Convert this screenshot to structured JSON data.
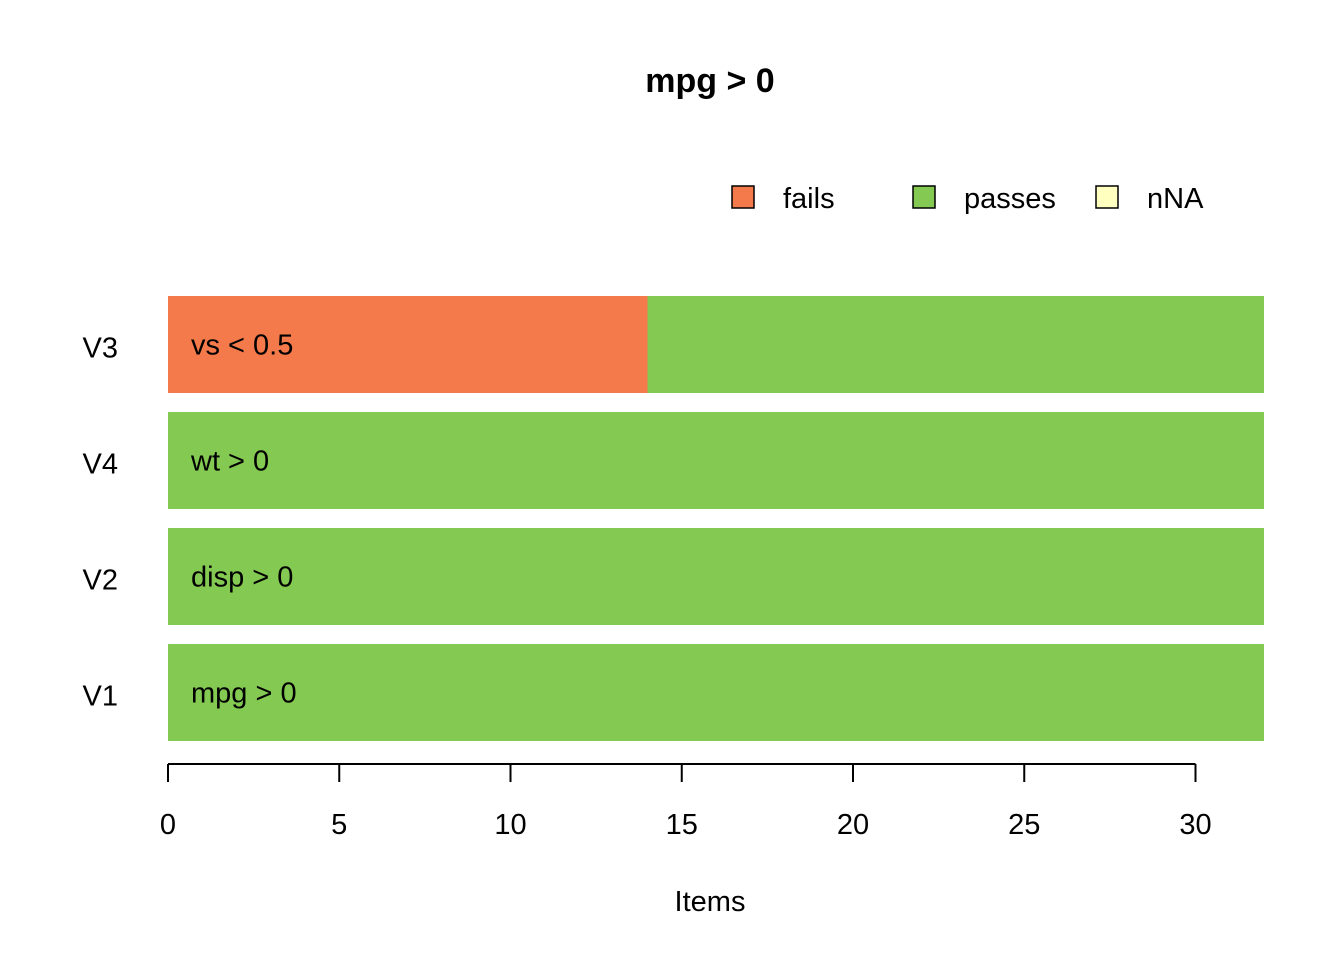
{
  "chart_data": {
    "type": "bar",
    "orientation": "horizontal",
    "stacked": true,
    "title": "mpg > 0",
    "xlabel": "Items",
    "ylabel": "",
    "xlim": [
      0,
      32
    ],
    "x_ticks": [
      0,
      5,
      10,
      15,
      20,
      25,
      30
    ],
    "legend_position": "top-right",
    "legend": [
      {
        "name": "fails",
        "color": "#F57A4B"
      },
      {
        "name": "passes",
        "color": "#83C952"
      },
      {
        "name": "nNA",
        "color": "#FFFFBF"
      }
    ],
    "categories": [
      "V3",
      "V4",
      "V2",
      "V1"
    ],
    "bar_labels": [
      "vs < 0.5",
      "wt > 0",
      "disp > 0",
      "mpg > 0"
    ],
    "series": [
      {
        "name": "fails",
        "values": [
          14,
          0,
          0,
          0
        ]
      },
      {
        "name": "passes",
        "values": [
          18,
          32,
          32,
          32
        ]
      },
      {
        "name": "nNA",
        "values": [
          0,
          0,
          0,
          0
        ]
      }
    ]
  }
}
